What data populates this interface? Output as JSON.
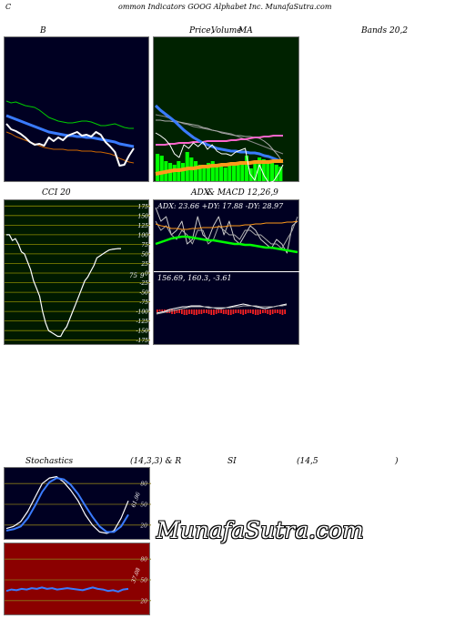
{
  "header": {
    "c": "C",
    "title": "ommon  Indicators GOOG Alphabet Inc. MunafaSutra.com"
  },
  "labels": {
    "b": "B",
    "price": "Price,",
    "volume": "Volume",
    "ma": "MA",
    "bands": "Bands 20,2",
    "cci": "CCI 20",
    "adx": "ADX",
    "macd": "& MACD 12,26,9",
    "stoch": "Stochastics",
    "stoch_params": "(14,3,3) & R",
    "si": "SI",
    "rsi_params": "(14,5",
    "paren": ")"
  },
  "brand": "MunafaSutra.com",
  "colors": {
    "navy": "#000022",
    "green_bg": "#002200",
    "olive_bg": "#001a00",
    "red_bg": "#8b0000",
    "blue": "#3a7bff",
    "orange": "#ff9a1a",
    "lime": "#00ff00",
    "pink": "#ff66cc"
  },
  "chart_data": [
    {
      "type": "line",
      "name": "bollinger-bands",
      "series": [
        {
          "key": "upper",
          "color": "#00cc00",
          "values": [
            70,
            72,
            71,
            73,
            75,
            76,
            77,
            80,
            84,
            88,
            90,
            92,
            93,
            94,
            94,
            93,
            92,
            92,
            93,
            95,
            97,
            97,
            96,
            95,
            97,
            99,
            100,
            100
          ]
        },
        {
          "key": "mid",
          "color": "#3a7bff",
          "values": [
            86,
            88,
            90,
            92,
            94,
            96,
            98,
            100,
            102,
            104,
            105,
            106,
            107,
            108,
            108,
            109,
            109,
            110,
            110,
            111,
            112,
            113,
            114,
            115,
            117,
            118,
            119,
            120
          ]
        },
        {
          "key": "lower",
          "color": "#cc6600",
          "values": [
            104,
            106,
            109,
            111,
            113,
            115,
            117,
            119,
            121,
            122,
            123,
            123,
            123,
            124,
            124,
            124,
            125,
            125,
            125,
            126,
            126,
            127,
            128,
            130,
            133,
            135,
            137,
            138
          ]
        },
        {
          "key": "price",
          "color": "#ffffff",
          "values": [
            95,
            101,
            103,
            106,
            110,
            115,
            118,
            117,
            119,
            110,
            114,
            110,
            113,
            108,
            106,
            104,
            108,
            107,
            109,
            104,
            107,
            115,
            120,
            126,
            141,
            140,
            130,
            122
          ]
        }
      ]
    },
    {
      "type": "line",
      "name": "price-volume-ma",
      "series": [
        {
          "key": "ma_grey1",
          "color": "#888888",
          "values": [
            85,
            86,
            87,
            89,
            91,
            93,
            95,
            96,
            98,
            99,
            100,
            101,
            102,
            103,
            104,
            105,
            106,
            108,
            110,
            112,
            114,
            116,
            118,
            120,
            122,
            124,
            126,
            128
          ]
        },
        {
          "key": "ma_grey2",
          "color": "#aaaaaa",
          "values": [
            91,
            91,
            92,
            92,
            93,
            93,
            94,
            95,
            96,
            97,
            99,
            100,
            102,
            103,
            105,
            106,
            107,
            108,
            108,
            109,
            109,
            110,
            111,
            114,
            118,
            124,
            130,
            138
          ]
        },
        {
          "key": "ma_pink",
          "color": "#ff66cc",
          "values": [
            118,
            118,
            118,
            117,
            117,
            116,
            116,
            116,
            115,
            115,
            115,
            114,
            114,
            114,
            114,
            114,
            113,
            113,
            112,
            112,
            111,
            110,
            110,
            109,
            109,
            108,
            108,
            108
          ]
        },
        {
          "key": "ma_blue",
          "color": "#3a7bff",
          "values": [
            75,
            80,
            84,
            88,
            92,
            97,
            102,
            106,
            110,
            113,
            116,
            118,
            120,
            122,
            123,
            124,
            125,
            125,
            126,
            126,
            127,
            127,
            128,
            130,
            131,
            133,
            135,
            136
          ]
        },
        {
          "key": "ma_orange",
          "color": "#ff9a1a",
          "values": [
            150,
            149,
            148,
            147,
            146,
            146,
            145,
            144,
            144,
            143,
            142,
            142,
            141,
            141,
            140,
            140,
            139,
            139,
            138,
            138,
            138,
            137,
            137,
            137,
            137,
            136,
            136,
            136
          ]
        },
        {
          "key": "price_white",
          "color": "#ffffff",
          "values": [
            105,
            108,
            112,
            118,
            128,
            132,
            118,
            122,
            116,
            120,
            115,
            123,
            118,
            125,
            128,
            128,
            130,
            126,
            124,
            122,
            150,
            157,
            140,
            152,
            160,
            158,
            150,
            140
          ]
        }
      ],
      "volume": [
        30,
        28,
        22,
        20,
        18,
        22,
        20,
        32,
        26,
        22,
        18,
        16,
        20,
        22,
        16,
        18,
        15,
        20,
        18,
        20,
        22,
        28,
        14,
        20,
        26,
        24,
        20,
        22,
        18,
        16
      ]
    },
    {
      "type": "line",
      "name": "cci",
      "series": [
        {
          "key": "cci",
          "color": "#ffffff",
          "values": [
            100,
            100,
            85,
            90,
            75,
            55,
            50,
            30,
            10,
            -20,
            -40,
            -60,
            -100,
            -130,
            -150,
            -155,
            -160,
            -165,
            -165,
            -150,
            -140,
            -120,
            -100,
            -80,
            -60,
            -40,
            -20,
            -10,
            5,
            20,
            40,
            45,
            50,
            55,
            60,
            62,
            63,
            64,
            64
          ]
        }
      ],
      "ticks": [
        "175",
        "150",
        "125",
        "100",
        "75",
        "50",
        "25",
        "0",
        "-25",
        "-50",
        "-75",
        "-100",
        "-125",
        "-150",
        "-175"
      ],
      "tick_values": [
        175,
        150,
        125,
        100,
        75,
        50,
        25,
        0,
        -25,
        -50,
        -75,
        -100,
        -125,
        -150,
        -175
      ],
      "ylim": [
        -190,
        190
      ],
      "marker": "75",
      "annotation": "9"
    },
    {
      "type": "line",
      "name": "adx",
      "readout": "ADX: 23.66  +DY: 17.88  -DY: 28.97",
      "series": [
        {
          "key": "plus_dy",
          "color": "#cccccc",
          "values": [
            70,
            55,
            60,
            40,
            45,
            55,
            30,
            35,
            60,
            40,
            35,
            50,
            60,
            40,
            55,
            35,
            30,
            40,
            50,
            45,
            35,
            30,
            25,
            35,
            30,
            20,
            50,
            55
          ]
        },
        {
          "key": "minus_dy",
          "color": "#aaaaaa",
          "values": [
            55,
            45,
            50,
            40,
            35,
            45,
            40,
            30,
            45,
            45,
            30,
            35,
            50,
            45,
            40,
            40,
            35,
            45,
            45,
            40,
            40,
            35,
            30,
            30,
            25,
            35,
            45,
            60
          ]
        },
        {
          "key": "adx",
          "color": "#ff9a1a",
          "values": [
            52,
            50,
            49,
            47,
            47,
            46,
            46,
            47,
            47,
            48,
            48,
            48,
            49,
            49,
            50,
            50,
            50,
            51,
            51,
            52,
            52,
            53,
            53,
            53,
            53,
            54,
            54,
            55
          ]
        },
        {
          "key": "green",
          "color": "#00ff00",
          "values": [
            30,
            32,
            34,
            36,
            37,
            38,
            38,
            37,
            36,
            35,
            34,
            34,
            33,
            32,
            31,
            30,
            30,
            29,
            29,
            28,
            27,
            26,
            26,
            25,
            24,
            23,
            22,
            21
          ]
        }
      ]
    },
    {
      "type": "bar",
      "name": "macd",
      "readout": "156.69,  160.3,  -3.61",
      "histogram": [
        3,
        2,
        2,
        3,
        4,
        4,
        5,
        5,
        4,
        4,
        5,
        6,
        6,
        5,
        5,
        6,
        6,
        5,
        5,
        4,
        4,
        5,
        6,
        6,
        5,
        4,
        4,
        5,
        5,
        6,
        6,
        5,
        4,
        4,
        5,
        6,
        5,
        4,
        4,
        5,
        6,
        6,
        5,
        4,
        4,
        5,
        6,
        5,
        4,
        4,
        5,
        6,
        5
      ],
      "series": [
        {
          "key": "macd",
          "color": "#ffffff",
          "values": [
            4,
            5,
            6,
            8,
            9,
            10,
            11,
            11,
            12,
            12,
            12,
            11,
            10,
            10,
            9,
            9,
            10,
            11,
            12,
            13,
            14,
            13,
            12,
            11,
            10,
            9,
            10,
            11,
            12,
            13,
            14
          ]
        },
        {
          "key": "signal",
          "color": "#aaaaaa",
          "values": [
            3,
            4,
            5,
            6,
            7,
            8,
            9,
            10,
            11,
            11,
            11,
            11,
            11,
            10,
            10,
            10,
            10,
            10,
            11,
            11,
            12,
            12,
            12,
            12,
            11,
            11,
            11,
            11,
            12,
            12,
            13
          ]
        }
      ]
    },
    {
      "type": "line",
      "name": "stochastics",
      "ticks": [
        "80",
        "50",
        "20"
      ],
      "tick_values": [
        80,
        50,
        20
      ],
      "ylim": [
        0,
        100
      ],
      "annotation": "61.96",
      "series": [
        {
          "key": "k",
          "color": "#ffffff",
          "values": [
            15,
            18,
            25,
            40,
            60,
            80,
            88,
            90,
            82,
            70,
            55,
            35,
            20,
            10,
            8,
            12,
            30,
            55
          ]
        },
        {
          "key": "d",
          "color": "#3a7bff",
          "values": [
            12,
            14,
            18,
            30,
            48,
            68,
            82,
            88,
            86,
            78,
            65,
            48,
            32,
            18,
            10,
            10,
            18,
            35
          ]
        }
      ]
    },
    {
      "type": "line",
      "name": "rsi",
      "ticks": [
        "80",
        "50",
        "20"
      ],
      "tick_values": [
        80,
        50,
        20
      ],
      "ylim": [
        0,
        100
      ],
      "annotation": "37.08",
      "series": [
        {
          "key": "rsi",
          "color": "#3a7bff",
          "values": [
            34,
            36,
            35,
            37,
            36,
            38,
            37,
            39,
            37,
            38,
            36,
            37,
            38,
            37,
            36,
            35,
            37,
            39,
            37,
            36,
            34,
            35,
            33,
            36,
            37
          ]
        }
      ]
    }
  ]
}
